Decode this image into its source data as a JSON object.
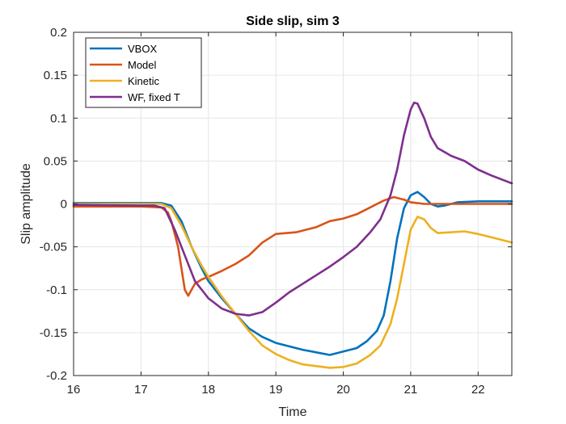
{
  "chart_data": {
    "type": "line",
    "title": "Side slip, sim 3",
    "xlabel": "Time",
    "ylabel": "Slip amplitude",
    "xlim": [
      16,
      22.5
    ],
    "ylim": [
      -0.2,
      0.2
    ],
    "xticks": [
      16,
      17,
      18,
      19,
      20,
      21,
      22
    ],
    "yticks": [
      0.2,
      0.15,
      0.1,
      0.05,
      0,
      -0.05,
      -0.1,
      -0.15,
      -0.2
    ],
    "ytick_labels": [
      "0.2",
      "0.15",
      "0.1",
      "0.05",
      "0",
      "-0.05",
      "-0.1",
      "-0.15",
      "-0.2"
    ],
    "grid": true,
    "legend_position": "top-left",
    "series": [
      {
        "name": "VBOX",
        "color": "#0072BD",
        "points": [
          [
            16,
            0.001
          ],
          [
            16.5,
            0.001
          ],
          [
            17,
            0.001
          ],
          [
            17.3,
            0.001
          ],
          [
            17.45,
            -0.002
          ],
          [
            17.6,
            -0.02
          ],
          [
            17.75,
            -0.05
          ],
          [
            17.9,
            -0.075
          ],
          [
            18,
            -0.09
          ],
          [
            18.2,
            -0.11
          ],
          [
            18.4,
            -0.128
          ],
          [
            18.6,
            -0.145
          ],
          [
            18.8,
            -0.155
          ],
          [
            19,
            -0.162
          ],
          [
            19.2,
            -0.166
          ],
          [
            19.4,
            -0.17
          ],
          [
            19.6,
            -0.173
          ],
          [
            19.8,
            -0.176
          ],
          [
            20,
            -0.172
          ],
          [
            20.2,
            -0.168
          ],
          [
            20.35,
            -0.16
          ],
          [
            20.5,
            -0.148
          ],
          [
            20.6,
            -0.13
          ],
          [
            20.7,
            -0.09
          ],
          [
            20.8,
            -0.04
          ],
          [
            20.9,
            -0.005
          ],
          [
            21,
            0.01
          ],
          [
            21.1,
            0.014
          ],
          [
            21.2,
            0.008
          ],
          [
            21.3,
            0.0
          ],
          [
            21.4,
            -0.003
          ],
          [
            21.5,
            -0.002
          ],
          [
            21.7,
            0.002
          ],
          [
            22,
            0.003
          ],
          [
            22.5,
            0.003
          ]
        ]
      },
      {
        "name": "Model",
        "color": "#D95319",
        "points": [
          [
            16,
            -0.003
          ],
          [
            17,
            -0.003
          ],
          [
            17.3,
            -0.004
          ],
          [
            17.4,
            -0.01
          ],
          [
            17.45,
            -0.02
          ],
          [
            17.5,
            -0.035
          ],
          [
            17.55,
            -0.05
          ],
          [
            17.6,
            -0.075
          ],
          [
            17.65,
            -0.1
          ],
          [
            17.7,
            -0.107
          ],
          [
            17.75,
            -0.1
          ],
          [
            17.8,
            -0.093
          ],
          [
            17.9,
            -0.088
          ],
          [
            18,
            -0.085
          ],
          [
            18.2,
            -0.078
          ],
          [
            18.4,
            -0.07
          ],
          [
            18.6,
            -0.06
          ],
          [
            18.8,
            -0.045
          ],
          [
            19,
            -0.035
          ],
          [
            19.3,
            -0.033
          ],
          [
            19.6,
            -0.027
          ],
          [
            19.8,
            -0.02
          ],
          [
            20,
            -0.017
          ],
          [
            20.2,
            -0.012
          ],
          [
            20.4,
            -0.004
          ],
          [
            20.6,
            0.004
          ],
          [
            20.75,
            0.008
          ],
          [
            20.9,
            0.005
          ],
          [
            21,
            0.002
          ],
          [
            21.2,
            0
          ],
          [
            22.5,
            0
          ]
        ]
      },
      {
        "name": "Kinetic",
        "color": "#EDB120",
        "points": [
          [
            16,
            0
          ],
          [
            17,
            0
          ],
          [
            17.3,
            0
          ],
          [
            17.45,
            -0.005
          ],
          [
            17.6,
            -0.025
          ],
          [
            17.75,
            -0.05
          ],
          [
            17.9,
            -0.072
          ],
          [
            18,
            -0.085
          ],
          [
            18.2,
            -0.108
          ],
          [
            18.4,
            -0.128
          ],
          [
            18.6,
            -0.148
          ],
          [
            18.8,
            -0.165
          ],
          [
            19,
            -0.175
          ],
          [
            19.2,
            -0.182
          ],
          [
            19.4,
            -0.187
          ],
          [
            19.6,
            -0.189
          ],
          [
            19.8,
            -0.191
          ],
          [
            20,
            -0.19
          ],
          [
            20.2,
            -0.186
          ],
          [
            20.4,
            -0.176
          ],
          [
            20.55,
            -0.165
          ],
          [
            20.7,
            -0.14
          ],
          [
            20.8,
            -0.11
          ],
          [
            20.9,
            -0.07
          ],
          [
            21,
            -0.03
          ],
          [
            21.1,
            -0.015
          ],
          [
            21.2,
            -0.018
          ],
          [
            21.3,
            -0.028
          ],
          [
            21.4,
            -0.034
          ],
          [
            21.6,
            -0.033
          ],
          [
            21.8,
            -0.032
          ],
          [
            22,
            -0.035
          ],
          [
            22.2,
            -0.039
          ],
          [
            22.5,
            -0.045
          ]
        ]
      },
      {
        "name": "WF, fixed T",
        "color": "#7E2F8E",
        "points": [
          [
            16,
            -0.001
          ],
          [
            17,
            -0.002
          ],
          [
            17.2,
            -0.002
          ],
          [
            17.35,
            -0.005
          ],
          [
            17.5,
            -0.03
          ],
          [
            17.65,
            -0.06
          ],
          [
            17.8,
            -0.09
          ],
          [
            18,
            -0.11
          ],
          [
            18.2,
            -0.122
          ],
          [
            18.4,
            -0.128
          ],
          [
            18.6,
            -0.13
          ],
          [
            18.8,
            -0.126
          ],
          [
            19,
            -0.115
          ],
          [
            19.2,
            -0.103
          ],
          [
            19.4,
            -0.093
          ],
          [
            19.6,
            -0.083
          ],
          [
            19.8,
            -0.073
          ],
          [
            20,
            -0.062
          ],
          [
            20.2,
            -0.05
          ],
          [
            20.4,
            -0.033
          ],
          [
            20.55,
            -0.018
          ],
          [
            20.7,
            0.01
          ],
          [
            20.8,
            0.04
          ],
          [
            20.9,
            0.08
          ],
          [
            21,
            0.11
          ],
          [
            21.05,
            0.118
          ],
          [
            21.1,
            0.117
          ],
          [
            21.2,
            0.1
          ],
          [
            21.3,
            0.078
          ],
          [
            21.4,
            0.065
          ],
          [
            21.6,
            0.056
          ],
          [
            21.8,
            0.05
          ],
          [
            22,
            0.04
          ],
          [
            22.2,
            0.033
          ],
          [
            22.4,
            0.027
          ],
          [
            22.5,
            0.024
          ]
        ]
      }
    ]
  }
}
